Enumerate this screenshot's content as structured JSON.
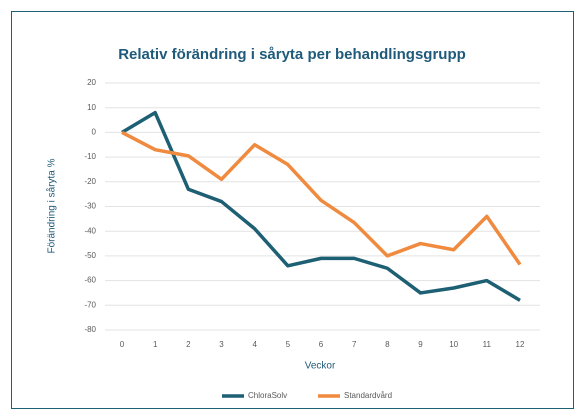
{
  "chart_data": {
    "type": "line",
    "title": "Relativ förändring i såryta per behandlingsgrupp",
    "x_label": "Veckor",
    "y_label": "Förändring i såryta %",
    "x": [
      0,
      1,
      2,
      3,
      4,
      5,
      6,
      7,
      8,
      9,
      10,
      11,
      12
    ],
    "xlim": [
      0,
      12
    ],
    "xticks": [
      0,
      1,
      2,
      3,
      4,
      5,
      6,
      7,
      8,
      9,
      10,
      11,
      12
    ],
    "ylim": [
      -80,
      20
    ],
    "yticks": [
      -80,
      -70,
      -60,
      -50,
      -40,
      -30,
      -20,
      -10,
      0,
      10,
      20
    ],
    "grid": true,
    "legend": "bottom",
    "series": [
      {
        "name": "ChloraSolv",
        "color": "#1d5f73",
        "values": [
          0,
          8,
          -23,
          -28,
          -39,
          -54,
          -51,
          -51,
          -55,
          -65,
          -63,
          -60,
          -68
        ]
      },
      {
        "name": "Standardvård",
        "color": "#ef8a3e",
        "values": [
          0,
          -7,
          -9.5,
          -19,
          -5,
          -13,
          -27.5,
          -36.5,
          -50,
          -45,
          -47.5,
          -34,
          -53.5
        ]
      }
    ]
  }
}
